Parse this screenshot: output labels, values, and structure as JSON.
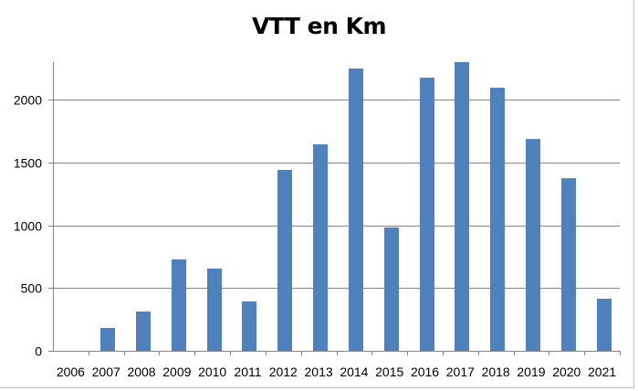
{
  "chart_data": {
    "type": "bar",
    "title": "VTT en Km",
    "xlabel": "",
    "ylabel": "",
    "categories": [
      "2006",
      "2007",
      "2008",
      "2009",
      "2010",
      "2011",
      "2012",
      "2013",
      "2014",
      "2015",
      "2016",
      "2017",
      "2018",
      "2019",
      "2020",
      "2021"
    ],
    "series": [
      {
        "name": "VTT en Km",
        "values": [
          0,
          182,
          313,
          728,
          655,
          393,
          1441,
          1645,
          2249,
          983,
          2176,
          2300,
          2096,
          1688,
          1375,
          415
        ]
      }
    ],
    "ylim": [
      0,
      2300
    ],
    "yticks": [
      0,
      500,
      1000,
      1500,
      2000
    ],
    "grid": true,
    "legend": "none",
    "bar_color": "#4f81bd"
  }
}
